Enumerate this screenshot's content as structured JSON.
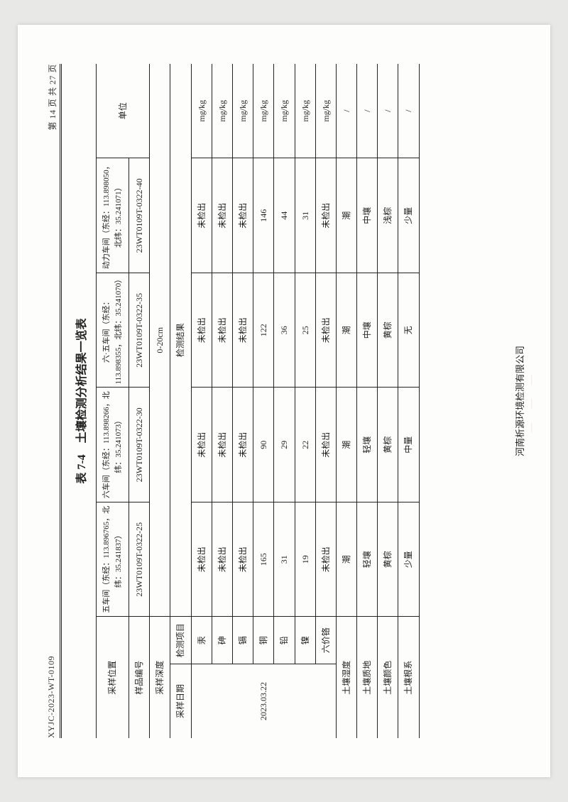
{
  "header": {
    "doc_no": "XYJC-2023-WT-0109",
    "page_info": "第 14 页 共 27 页"
  },
  "title": "表 7-4　土壤检测分析结果一览表",
  "labels": {
    "sample_location": "采样位置",
    "sample_no": "样品编号",
    "sample_depth": "采样深度",
    "sample_date": "采样日期",
    "test_item": "检测项目",
    "test_result": "检测结果",
    "unit": "单位",
    "soil_moisture": "土壤湿度",
    "soil_texture": "土壤质地",
    "soil_color": "土壤颜色",
    "soil_roots": "土壤根系"
  },
  "columns": [
    {
      "location": "五车间（东经：113.896765，北纬：35.241837）",
      "sample_no": "23WT0109T-0322-25"
    },
    {
      "location": "六车间（东经：113.898266，北纬：35.241073）",
      "sample_no": "23WT0109T-0322-30"
    },
    {
      "location": "六·五车间（东经：113.898355，北纬：35.241070）",
      "sample_no": "23WT0109T-0322-35"
    },
    {
      "location": "动力车间（东经：113.898050，北纬：35.241071）",
      "sample_no": "23WT0109T-0322-40"
    }
  ],
  "depth_value": "0-20cm",
  "date_value": "2023.03.22",
  "items": [
    {
      "name": "汞",
      "v": [
        "未检出",
        "未检出",
        "未检出",
        "未检出"
      ],
      "unit": "mg/kg"
    },
    {
      "name": "砷",
      "v": [
        "未检出",
        "未检出",
        "未检出",
        "未检出"
      ],
      "unit": "mg/kg"
    },
    {
      "name": "镉",
      "v": [
        "未检出",
        "未检出",
        "未检出",
        "未检出"
      ],
      "unit": "mg/kg"
    },
    {
      "name": "铜",
      "v": [
        "165",
        "90",
        "122",
        "146"
      ],
      "unit": "mg/kg"
    },
    {
      "name": "铅",
      "v": [
        "31",
        "29",
        "36",
        "44"
      ],
      "unit": "mg/kg"
    },
    {
      "name": "镍",
      "v": [
        "19",
        "22",
        "25",
        "31"
      ],
      "unit": "mg/kg"
    },
    {
      "name": "六价铬",
      "v": [
        "未检出",
        "未检出",
        "未检出",
        "未检出"
      ],
      "unit": "mg/kg"
    }
  ],
  "extra_rows": [
    {
      "label_key": "soil_moisture",
      "v": [
        "潮",
        "潮",
        "潮",
        "潮"
      ],
      "unit": "/"
    },
    {
      "label_key": "soil_texture",
      "v": [
        "轻壤",
        "轻壤",
        "中壤",
        "中壤"
      ],
      "unit": "/"
    },
    {
      "label_key": "soil_color",
      "v": [
        "黄棕",
        "黄棕",
        "黄棕",
        "浅棕"
      ],
      "unit": "/"
    },
    {
      "label_key": "soil_roots",
      "v": [
        "少量",
        "中量",
        "无",
        "少量"
      ],
      "unit": "/"
    }
  ],
  "footer": "河南析源环境检测有限公司",
  "style": {
    "fonts": {
      "body": 12,
      "title": 16,
      "header": 12,
      "footer": 13
    },
    "colors": {
      "text": "#222222",
      "border": "#222222",
      "page_bg": "#fdfdfc",
      "outer_bg": "#e8e8e6",
      "red": "rgba(220,30,30,0.15)"
    },
    "col_widths_pct": [
      11,
      7,
      17,
      17,
      17,
      17,
      14
    ]
  }
}
